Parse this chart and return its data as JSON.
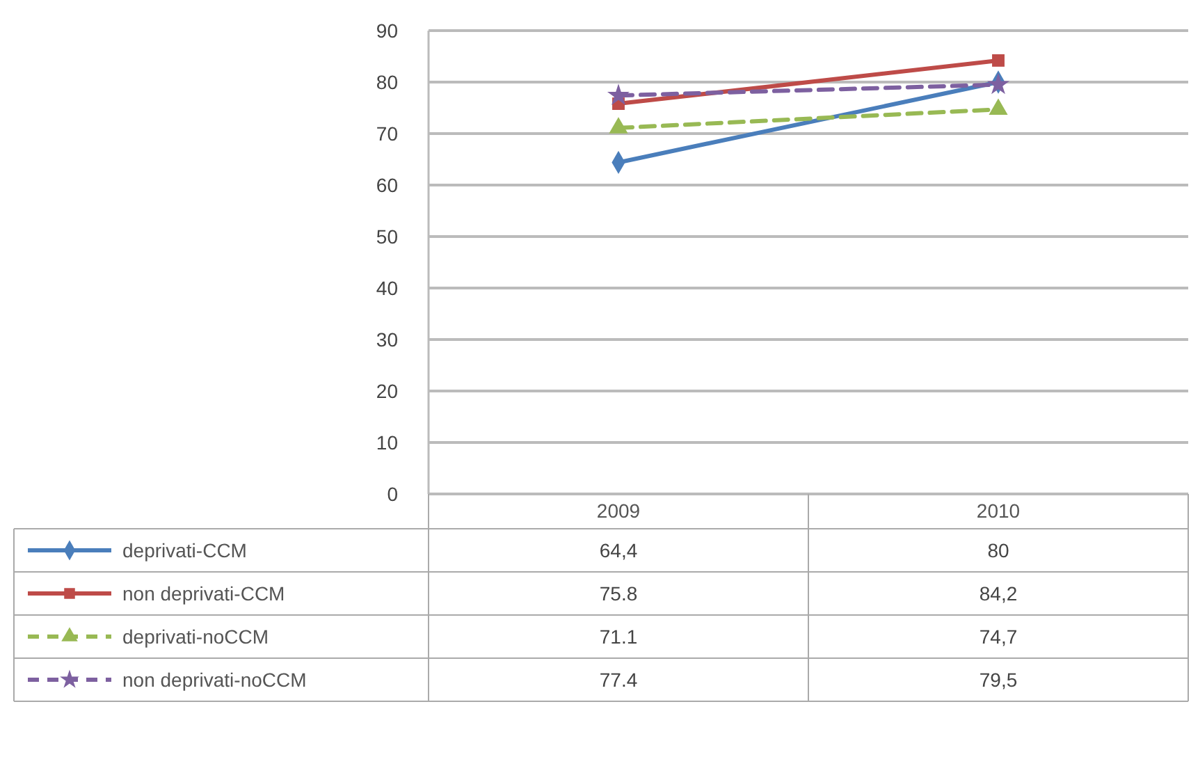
{
  "chart_data": {
    "type": "line",
    "categories": [
      "2009",
      "2010"
    ],
    "ylim": [
      0,
      90
    ],
    "yticks": [
      0,
      10,
      20,
      30,
      40,
      50,
      60,
      70,
      80,
      90
    ],
    "grid": "y",
    "legend": "bottom",
    "series": [
      {
        "name": "deprivati-CCM",
        "color": "#4a7ebb",
        "values": [
          64.4,
          80
        ],
        "value_labels": [
          "64,4",
          "80"
        ],
        "marker": "diamond",
        "line_style": "solid"
      },
      {
        "name": "non deprivati-CCM",
        "color": "#be4b48",
        "values": [
          75.8,
          84.2
        ],
        "value_labels": [
          "75.8",
          "84,2"
        ],
        "marker": "square",
        "line_style": "solid"
      },
      {
        "name": "deprivati-noCCM",
        "color": "#98b954",
        "values": [
          71.1,
          74.7
        ],
        "value_labels": [
          "71.1",
          "74,7"
        ],
        "marker": "triangle",
        "line_style": "dashed"
      },
      {
        "name": "non deprivati-noCCM",
        "color": "#7d60a0",
        "values": [
          77.4,
          79.5
        ],
        "value_labels": [
          "77.4",
          "79,5"
        ],
        "marker": "star",
        "line_style": "dashed"
      }
    ]
  }
}
